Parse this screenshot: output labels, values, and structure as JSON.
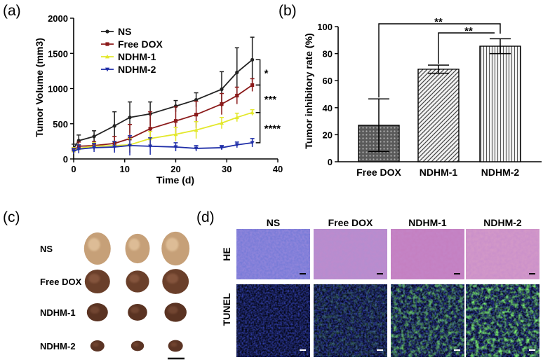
{
  "panels": {
    "a": "(a)",
    "b": "(b)",
    "c": "(c)",
    "d": "(d)"
  },
  "colors": {
    "ns": "#222222",
    "free_dox": "#8b1a1a",
    "ndhm1": "#e3e82c",
    "ndhm2": "#1f2ea8"
  },
  "chart_data": [
    {
      "type": "line",
      "title": "",
      "xlabel": "Time (d)",
      "ylabel": "Tumor Volume (mm3)",
      "xlim": [
        0,
        40
      ],
      "ylim": [
        0,
        2000
      ],
      "xticks": [
        0,
        10,
        20,
        30,
        40
      ],
      "yticks": [
        0,
        500,
        1000,
        1500,
        2000
      ],
      "x": [
        0,
        1,
        4,
        8,
        11,
        15,
        20,
        24,
        29,
        32,
        35
      ],
      "series": [
        {
          "name": "NS",
          "values": [
            150,
            260,
            320,
            470,
            590,
            640,
            750,
            840,
            990,
            1230,
            1410
          ],
          "errors": [
            60,
            80,
            80,
            200,
            220,
            170,
            80,
            100,
            250,
            350,
            320
          ]
        },
        {
          "name": "Free DOX",
          "values": [
            120,
            180,
            190,
            220,
            290,
            430,
            540,
            630,
            780,
            900,
            1050
          ],
          "errors": [
            40,
            60,
            60,
            100,
            200,
            240,
            200,
            190,
            150,
            120,
            90
          ]
        },
        {
          "name": "NDHM-1",
          "values": [
            120,
            150,
            180,
            190,
            200,
            290,
            350,
            410,
            510,
            590,
            660
          ],
          "errors": [
            40,
            50,
            50,
            60,
            90,
            100,
            100,
            120,
            80,
            60,
            40
          ]
        },
        {
          "name": "NDHM-2",
          "values": [
            110,
            140,
            160,
            170,
            190,
            180,
            170,
            150,
            160,
            200,
            230
          ],
          "errors": [
            40,
            60,
            60,
            80,
            140,
            120,
            60,
            40,
            30,
            40,
            60
          ]
        }
      ],
      "significance": [
        "*",
        "***",
        "****"
      ]
    },
    {
      "type": "bar",
      "title": "",
      "xlabel": "",
      "ylabel": "Tumor inhibitory rate (%)",
      "ylim": [
        0,
        100
      ],
      "yticks": [
        0,
        20,
        40,
        60,
        80,
        100
      ],
      "categories": [
        "Free DOX",
        "NDHM-1",
        "NDHM-2"
      ],
      "values": [
        27,
        68.5,
        85.5
      ],
      "errors": [
        19.5,
        3,
        5.5
      ],
      "significance": [
        "**",
        "**"
      ]
    }
  ],
  "tumor_rows": [
    "NS",
    "Free DOX",
    "NDHM-1",
    "NDHM-2"
  ],
  "histology": {
    "columns": [
      "NS",
      "Free DOX",
      "NDHM-1",
      "NDHM-2"
    ],
    "rows": [
      "HE",
      "TUNEL"
    ]
  }
}
